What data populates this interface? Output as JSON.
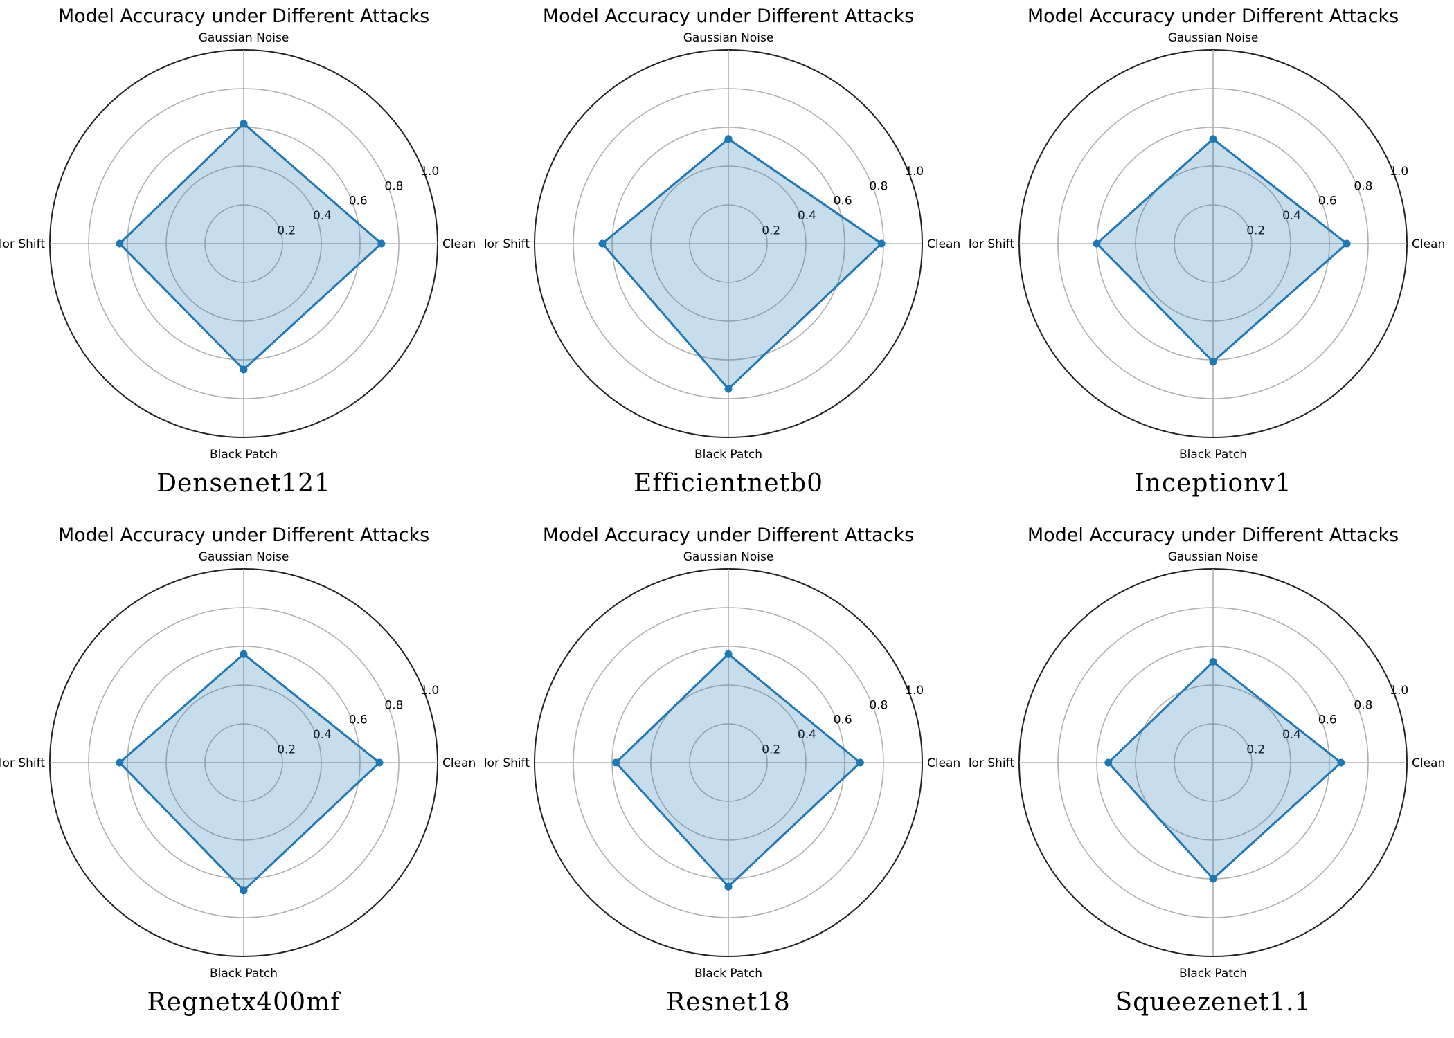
{
  "chart_data": [
    {
      "type": "radar",
      "title": "Model Accuracy under Different Attacks",
      "model": "Densenet121",
      "categories": [
        "Clean",
        "Gaussian Noise",
        "Color Shift",
        "Black Patch"
      ],
      "values": [
        0.71,
        0.62,
        0.64,
        0.65
      ],
      "rticks": [
        0.2,
        0.4,
        0.6,
        0.8,
        1.0
      ],
      "rtick_labels": [
        "0.2",
        "0.4",
        "0.6",
        "0.8",
        "1.0"
      ],
      "rlim": [
        0,
        1.0
      ],
      "color": "#1f77b4"
    },
    {
      "type": "radar",
      "title": "Model Accuracy under Different Attacks",
      "model": "Efficientnetb0",
      "categories": [
        "Clean",
        "Gaussian Noise",
        "Color Shift",
        "Black Patch"
      ],
      "values": [
        0.79,
        0.54,
        0.65,
        0.75
      ],
      "rticks": [
        0.2,
        0.4,
        0.6,
        0.8,
        1.0
      ],
      "rtick_labels": [
        "0.2",
        "0.4",
        "0.6",
        "0.8",
        "1.0"
      ],
      "rlim": [
        0,
        1.0
      ],
      "color": "#1f77b4"
    },
    {
      "type": "radar",
      "title": "Model Accuracy under Different Attacks",
      "model": "Inceptionv1",
      "categories": [
        "Clean",
        "Gaussian Noise",
        "Color Shift",
        "Black Patch"
      ],
      "values": [
        0.69,
        0.54,
        0.6,
        0.61
      ],
      "rticks": [
        0.2,
        0.4,
        0.6,
        0.8,
        1.0
      ],
      "rtick_labels": [
        "0.2",
        "0.4",
        "0.6",
        "0.8",
        "1.0"
      ],
      "rlim": [
        0,
        1.0
      ],
      "color": "#1f77b4"
    },
    {
      "type": "radar",
      "title": "Model Accuracy under Different Attacks",
      "model": "Regnetx400mf",
      "categories": [
        "Clean",
        "Gaussian Noise",
        "Color Shift",
        "Black Patch"
      ],
      "values": [
        0.7,
        0.56,
        0.64,
        0.66
      ],
      "rticks": [
        0.2,
        0.4,
        0.6,
        0.8,
        1.0
      ],
      "rtick_labels": [
        "0.2",
        "0.4",
        "0.6",
        "0.8",
        "1.0"
      ],
      "rlim": [
        0,
        1.0
      ],
      "color": "#1f77b4"
    },
    {
      "type": "radar",
      "title": "Model Accuracy under Different Attacks",
      "model": "Resnet18",
      "categories": [
        "Clean",
        "Gaussian Noise",
        "Color Shift",
        "Black Patch"
      ],
      "values": [
        0.68,
        0.56,
        0.58,
        0.64
      ],
      "rticks": [
        0.2,
        0.4,
        0.6,
        0.8,
        1.0
      ],
      "rtick_labels": [
        "0.2",
        "0.4",
        "0.6",
        "0.8",
        "1.0"
      ],
      "rlim": [
        0,
        1.0
      ],
      "color": "#1f77b4"
    },
    {
      "type": "radar",
      "title": "Model Accuracy under Different Attacks",
      "model": "Squeezenet1.1",
      "categories": [
        "Clean",
        "Gaussian Noise",
        "Color Shift",
        "Black Patch"
      ],
      "values": [
        0.66,
        0.52,
        0.54,
        0.6
      ],
      "rticks": [
        0.2,
        0.4,
        0.6,
        0.8,
        1.0
      ],
      "rtick_labels": [
        "0.2",
        "0.4",
        "0.6",
        "0.8",
        "1.0"
      ],
      "rlim": [
        0,
        1.0
      ],
      "color": "#1f77b4"
    }
  ]
}
